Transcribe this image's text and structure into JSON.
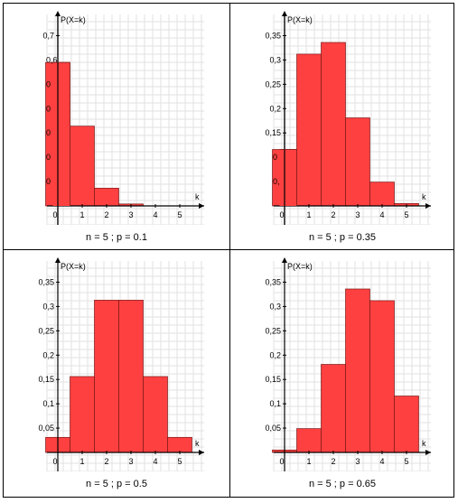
{
  "chart_data": [
    {
      "type": "bar",
      "caption": "n = 5 ; p = 0.1",
      "ylabel": "P(X=k)",
      "xlabel": "k",
      "categories": [
        "0",
        "1",
        "2",
        "3",
        "4",
        "5"
      ],
      "values": [
        0.59,
        0.328,
        0.073,
        0.008,
        0.0005,
        1e-05
      ],
      "yticks": [
        0.7
      ],
      "ytick_labels": [
        "0,7"
      ],
      "ytick_partial": [
        0.6,
        0.5,
        0.4,
        0.3,
        0.2,
        0.1
      ],
      "ytick_partial_labels": [
        "0,6",
        "0",
        "0",
        "0",
        "0",
        "0"
      ],
      "ylim": [
        0,
        0.75
      ],
      "grid": true,
      "bar_color": "#ff4040"
    },
    {
      "type": "bar",
      "caption": "n = 5 ; p = 0.35",
      "ylabel": "P(X=k)",
      "xlabel": "k",
      "categories": [
        "0",
        "1",
        "2",
        "3",
        "4",
        "5"
      ],
      "values": [
        0.116,
        0.312,
        0.336,
        0.181,
        0.049,
        0.005
      ],
      "yticks": [
        0.35,
        0.3,
        0.25,
        0.2,
        0.15
      ],
      "ytick_labels": [
        "0,35",
        "0,3",
        "0,25",
        "0,2",
        "0,15"
      ],
      "ytick_partial": [
        0.1,
        0.05
      ],
      "ytick_partial_labels": [
        "0",
        "0,"
      ],
      "ylim": [
        0,
        0.375
      ],
      "grid": true,
      "bar_color": "#ff4040"
    },
    {
      "type": "bar",
      "caption": "n = 5 ; p = 0.5",
      "ylabel": "P(X=k)",
      "xlabel": "k",
      "categories": [
        "0",
        "1",
        "2",
        "3",
        "4",
        "5"
      ],
      "values": [
        0.031,
        0.156,
        0.313,
        0.313,
        0.156,
        0.031
      ],
      "yticks": [
        0.35,
        0.3,
        0.25,
        0.2,
        0.15,
        0.1,
        0.05
      ],
      "ytick_labels": [
        "0,35",
        "0,3",
        "0,25",
        "0,2",
        "0,15",
        "0,1",
        "0,05"
      ],
      "ytick_partial": [],
      "ytick_partial_labels": [],
      "ylim": [
        0,
        0.375
      ],
      "grid": true,
      "bar_color": "#ff4040"
    },
    {
      "type": "bar",
      "caption": "n = 5 ; p = 0.65",
      "ylabel": "P(X=k)",
      "xlabel": "k",
      "categories": [
        "0",
        "1",
        "2",
        "3",
        "4",
        "5"
      ],
      "values": [
        0.005,
        0.049,
        0.181,
        0.336,
        0.312,
        0.116
      ],
      "yticks": [
        0.35,
        0.3,
        0.25,
        0.2,
        0.15,
        0.1,
        0.05
      ],
      "ytick_labels": [
        "0,35",
        "0,3",
        "0,25",
        "0,2",
        "0,15",
        "0,1",
        "0,05"
      ],
      "ytick_partial": [],
      "ytick_partial_labels": [],
      "ylim": [
        0,
        0.375
      ],
      "grid": true,
      "bar_color": "#ff4040"
    }
  ]
}
